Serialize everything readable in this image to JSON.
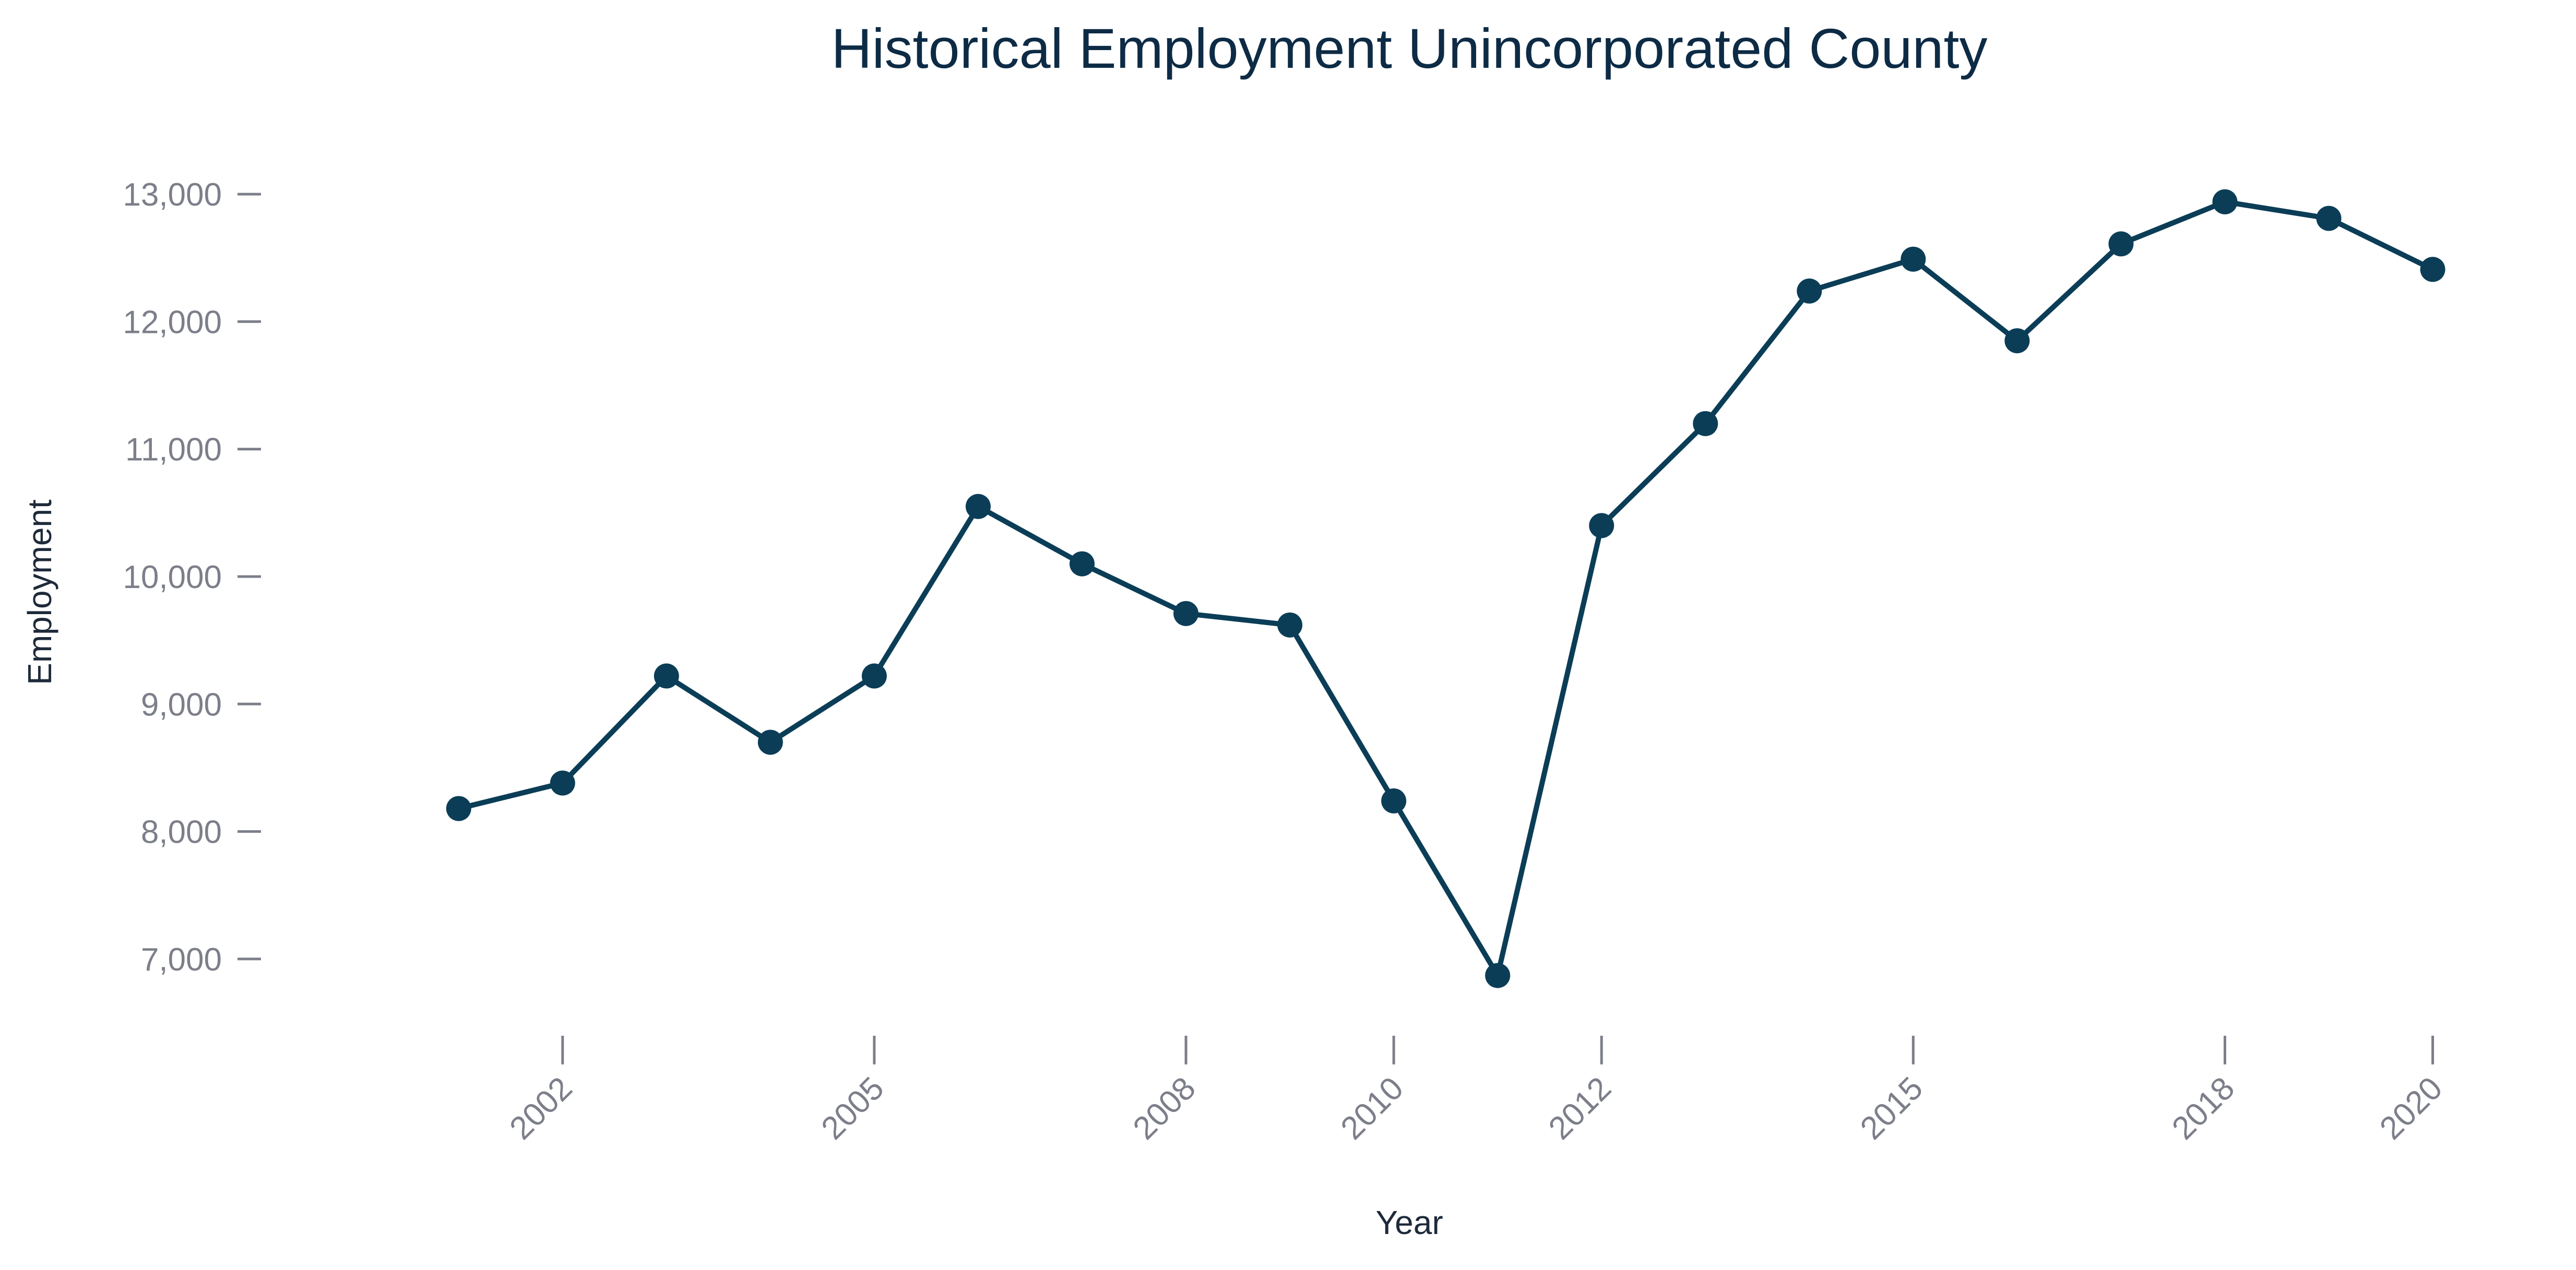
{
  "chart_data": {
    "type": "line",
    "title": "Historical Employment Unincorporated County",
    "xlabel": "Year",
    "ylabel": "Employment",
    "x_tick_labels": [
      {
        "x": 2002,
        "label": "2002"
      },
      {
        "x": 2005,
        "label": "2005"
      },
      {
        "x": 2008,
        "label": "2008"
      },
      {
        "x": 2010,
        "label": "2010"
      },
      {
        "x": 2012,
        "label": "2012"
      },
      {
        "x": 2015,
        "label": "2015"
      },
      {
        "x": 2018,
        "label": "2018"
      },
      {
        "x": 2020,
        "label": "2020"
      }
    ],
    "y_tick_labels": [
      {
        "y": 7000,
        "label": "7,000"
      },
      {
        "y": 8000,
        "label": "8,000"
      },
      {
        "y": 9000,
        "label": "9,000"
      },
      {
        "y": 10000,
        "label": "10,000"
      },
      {
        "y": 11000,
        "label": "11,000"
      },
      {
        "y": 12000,
        "label": "12,000"
      },
      {
        "y": 13000,
        "label": "13,000"
      }
    ],
    "xlim": [
      1999.7,
      2020.5
    ],
    "ylim": [
      6500,
      13500
    ],
    "grid": false,
    "legend": "none",
    "series": [
      {
        "color": "#0b3d57",
        "marker": "circle",
        "points": [
          {
            "x": 2001,
            "y": 8180
          },
          {
            "x": 2002,
            "y": 8380
          },
          {
            "x": 2003,
            "y": 9220
          },
          {
            "x": 2004,
            "y": 8700
          },
          {
            "x": 2005,
            "y": 9220
          },
          {
            "x": 2006,
            "y": 10550
          },
          {
            "x": 2007,
            "y": 10100
          },
          {
            "x": 2008,
            "y": 9710
          },
          {
            "x": 2009,
            "y": 9620
          },
          {
            "x": 2010,
            "y": 8240
          },
          {
            "x": 2011,
            "y": 6870
          },
          {
            "x": 2012,
            "y": 10400
          },
          {
            "x": 2013,
            "y": 11200
          },
          {
            "x": 2014,
            "y": 12240
          },
          {
            "x": 2015,
            "y": 12490
          },
          {
            "x": 2016,
            "y": 11850
          },
          {
            "x": 2017,
            "y": 12610
          },
          {
            "x": 2018,
            "y": 12940
          },
          {
            "x": 2019,
            "y": 12810
          },
          {
            "x": 2020,
            "y": 12410
          }
        ]
      }
    ]
  }
}
